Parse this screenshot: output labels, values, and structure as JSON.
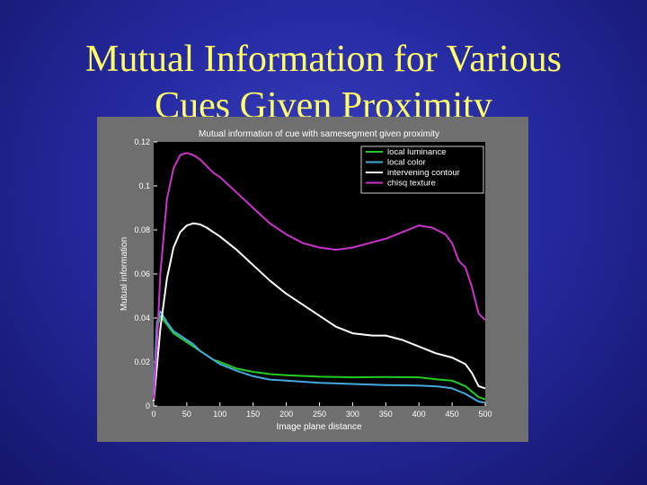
{
  "slide": {
    "title_line1": "Mutual Information for Various",
    "title_line2": "Cues Given Proximity"
  },
  "colors": {
    "background": "#262aa2",
    "title": "#ffff66",
    "figure_bg": "#6f6f6f",
    "plot_bg": "#000000"
  },
  "chart_data": {
    "type": "line",
    "title": "Mutual information of cue with samesegment given proximity",
    "xlabel": "Image plane distance",
    "ylabel": "Mutual information",
    "xlim": [
      0,
      500
    ],
    "ylim": [
      0,
      0.12
    ],
    "xticks": [
      0,
      50,
      100,
      150,
      200,
      250,
      300,
      350,
      400,
      450,
      500
    ],
    "yticks": [
      0,
      0.02,
      0.04,
      0.06,
      0.08,
      0.1,
      0.12
    ],
    "grid": false,
    "legend_position": "top-right",
    "series": [
      {
        "name": "local luminance",
        "color": "#22cc22",
        "x": [
          0,
          5,
          10,
          20,
          30,
          40,
          50,
          60,
          70,
          80,
          90,
          100,
          125,
          150,
          175,
          200,
          250,
          300,
          350,
          400,
          430,
          450,
          470,
          490,
          500
        ],
        "y": [
          0.005,
          0.035,
          0.041,
          0.037,
          0.033,
          0.031,
          0.029,
          0.027,
          0.025,
          0.023,
          0.021,
          0.02,
          0.017,
          0.0155,
          0.0145,
          0.014,
          0.0133,
          0.013,
          0.0132,
          0.013,
          0.012,
          0.0115,
          0.009,
          0.004,
          0.003
        ]
      },
      {
        "name": "local color",
        "color": "#44aadd",
        "x": [
          0,
          5,
          10,
          20,
          30,
          40,
          50,
          60,
          70,
          80,
          90,
          100,
          125,
          150,
          175,
          200,
          250,
          300,
          350,
          400,
          430,
          450,
          470,
          490,
          500
        ],
        "y": [
          0.006,
          0.038,
          0.043,
          0.038,
          0.034,
          0.032,
          0.03,
          0.028,
          0.025,
          0.023,
          0.021,
          0.019,
          0.016,
          0.0135,
          0.012,
          0.0115,
          0.0105,
          0.01,
          0.0095,
          0.0093,
          0.0088,
          0.008,
          0.0055,
          0.002,
          0.0015
        ]
      },
      {
        "name": "intervening contour",
        "color": "#ffffff",
        "x": [
          0,
          5,
          10,
          20,
          30,
          40,
          50,
          60,
          70,
          80,
          90,
          100,
          125,
          150,
          175,
          200,
          225,
          250,
          275,
          300,
          330,
          350,
          375,
          400,
          425,
          450,
          470,
          480,
          490,
          500
        ],
        "y": [
          0.002,
          0.018,
          0.035,
          0.058,
          0.072,
          0.079,
          0.082,
          0.083,
          0.0825,
          0.081,
          0.079,
          0.077,
          0.071,
          0.064,
          0.057,
          0.051,
          0.046,
          0.041,
          0.036,
          0.033,
          0.032,
          0.032,
          0.03,
          0.027,
          0.024,
          0.022,
          0.019,
          0.015,
          0.009,
          0.008
        ]
      },
      {
        "name": "chisq texture",
        "color": "#cc33cc",
        "x": [
          0,
          5,
          10,
          20,
          30,
          40,
          50,
          60,
          70,
          80,
          90,
          100,
          125,
          150,
          175,
          200,
          225,
          250,
          275,
          300,
          325,
          350,
          375,
          400,
          420,
          440,
          450,
          460,
          470,
          480,
          490,
          500
        ],
        "y": [
          0.003,
          0.028,
          0.06,
          0.094,
          0.108,
          0.114,
          0.115,
          0.114,
          0.112,
          0.109,
          0.106,
          0.104,
          0.097,
          0.09,
          0.083,
          0.078,
          0.074,
          0.072,
          0.071,
          0.072,
          0.074,
          0.076,
          0.079,
          0.082,
          0.081,
          0.078,
          0.074,
          0.066,
          0.063,
          0.054,
          0.042,
          0.039
        ]
      }
    ]
  }
}
